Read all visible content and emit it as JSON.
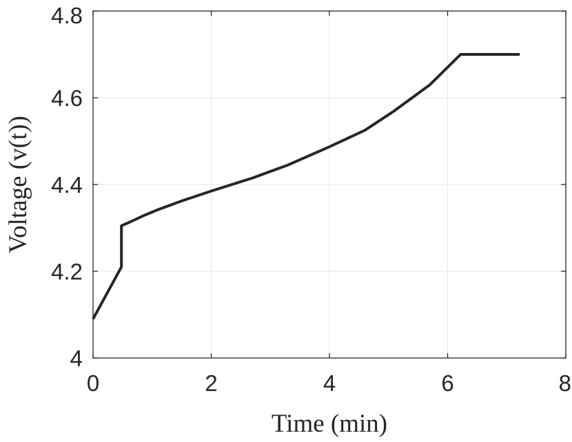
{
  "chart_data": {
    "type": "line",
    "title": "",
    "xlabel": "Time (min)",
    "ylabel": "Voltage (v(t))",
    "xlim": [
      0,
      8
    ],
    "ylim": [
      4,
      4.8
    ],
    "xticks": [
      0,
      2,
      4,
      6,
      8
    ],
    "xtick_labels": [
      "0",
      "2",
      "4",
      "6",
      "8"
    ],
    "yticks": [
      4,
      4.2,
      4.4,
      4.6,
      4.8
    ],
    "ytick_labels": [
      "4",
      "4.2",
      "4.4",
      "4.6",
      "4.8"
    ],
    "grid": true,
    "legend": "none",
    "colors": {
      "line": "#262626",
      "axes": "#262626",
      "grid": "#e6e6e6",
      "background": "#ffffff"
    },
    "series": [
      {
        "x": [
          0,
          0.48,
          0.48,
          0.65,
          0.85,
          1.1,
          1.5,
          2.0,
          2.7,
          3.3,
          4.0,
          4.6,
          5.1,
          5.7,
          6.22,
          7.22
        ],
        "y": [
          4.09,
          4.21,
          4.305,
          4.315,
          4.328,
          4.342,
          4.362,
          4.385,
          4.415,
          4.445,
          4.487,
          4.525,
          4.57,
          4.63,
          4.7,
          4.7
        ]
      }
    ]
  }
}
